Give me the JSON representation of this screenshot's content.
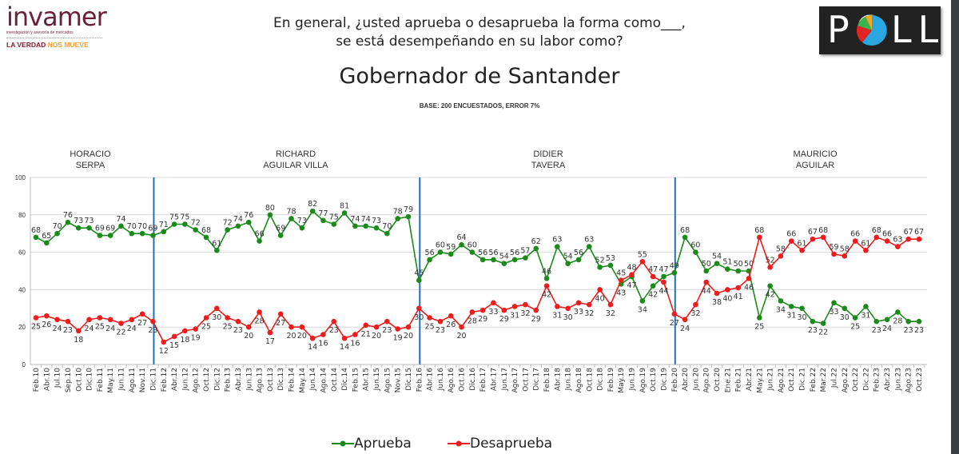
{
  "header": {
    "question": [
      "En general, ¿usted aprueba o desaprueba la forma como___,",
      "se está desempeñando en su labor como?"
    ],
    "title": "Gobernador de Santander",
    "base": "BASE: 200 ENCUESTADOS, ERROR 7%",
    "logo_left": {
      "brand": "invamer",
      "tagline": "investigación y asesoría de mercados",
      "slogan_a": "LA VERDAD",
      "slogan_b": "NOS MUEVE"
    },
    "logo_right": "POLL"
  },
  "candidates": [
    {
      "name": "HORACIO",
      "surname": "SERPA"
    },
    {
      "name": "RICHARD",
      "surname": "AGUILAR VILLA"
    },
    {
      "name": "DIDIER",
      "surname": "TAVERA"
    },
    {
      "name": "MAURICIO",
      "surname": "AGUILAR"
    }
  ],
  "chart_data": {
    "type": "line",
    "title": "Gobernador de Santander",
    "ylim": [
      0,
      100
    ],
    "yticks": [
      0,
      20,
      40,
      60,
      80,
      100
    ],
    "grid": true,
    "legend": "bottom",
    "dividers_at": [
      "Dic.11",
      "Feb.16",
      "Feb.20"
    ],
    "categories": [
      "Feb.10",
      "Abr.10",
      "Jul.10",
      "Sep.10",
      "Oct.10",
      "Dic.10",
      "Feb.11",
      "May.11",
      "Jun.11",
      "Ago.11",
      "Nov.11",
      "Dic.11",
      "Feb.12",
      "Abr.12",
      "Jun.12",
      "Ago.12",
      "Oct.12",
      "Dic.12",
      "Feb.13",
      "Abr.13",
      "Jun.13",
      "Ago.13",
      "Oct.13",
      "Dic.13",
      "Feb.14",
      "May.14",
      "Jun.14",
      "Ago.14",
      "Oct.14",
      "Dic.14",
      "Feb.15",
      "Abr.15",
      "Jun.15",
      "Ago.15",
      "Nov.15",
      "Dic.15",
      "Feb.16",
      "Abr.16",
      "Jun.16",
      "Ago.16",
      "Oct.16",
      "Dic.16",
      "Feb.17",
      "Abr.17",
      "Jun.17",
      "Ago.17",
      "Oct.17",
      "Dic.17",
      "Feb.18",
      "Abr.18",
      "Jun.18",
      "Ago.18",
      "Oct.18",
      "Dic.18",
      "Feb.19",
      "May.19",
      "Jun.19",
      "Ago.19",
      "Oct.19",
      "Dic.19",
      "Feb.20",
      "Abr.20",
      "Jun.20",
      "Ago.20",
      "Oct.20",
      "Ene.21",
      "Feb.21",
      "Abr.21",
      "May.21",
      "Jun.21",
      "Ago.21",
      "Oct.21",
      "Dic.21",
      "Feb.22",
      "Mar.22",
      "Jul.22",
      "Ago.22",
      "Oct.22",
      "Dic.22",
      "Feb.23",
      "Abr.23",
      "Jun.23",
      "Ago.23",
      "Oct.23"
    ],
    "series": [
      {
        "name": "Aprueba",
        "color": "#1a8a1a",
        "values": [
          68,
          65,
          70,
          76,
          73,
          73,
          69,
          69,
          74,
          70,
          70,
          69,
          71,
          75,
          75,
          72,
          68,
          61,
          72,
          74,
          76,
          66,
          80,
          69,
          78,
          73,
          82,
          77,
          75,
          81,
          74,
          74,
          73,
          70,
          78,
          79,
          45,
          56,
          60,
          59,
          64,
          60,
          56,
          56,
          54,
          56,
          57,
          62,
          46,
          63,
          54,
          56,
          63,
          52,
          53,
          43,
          47,
          34,
          42,
          47,
          49,
          68,
          60,
          50,
          54,
          51,
          50,
          50,
          25,
          42,
          34,
          31,
          30,
          23,
          22,
          33,
          30,
          25,
          31,
          23,
          24,
          28,
          23,
          23
        ]
      },
      {
        "name": "Desaprueba",
        "color": "#ee1c1c",
        "values": [
          25,
          26,
          24,
          23,
          18,
          24,
          25,
          24,
          22,
          24,
          27,
          23,
          12,
          15,
          18,
          19,
          25,
          30,
          25,
          23,
          20,
          28,
          17,
          27,
          20,
          20,
          14,
          16,
          23,
          14,
          16,
          21,
          20,
          23,
          19,
          20,
          30,
          25,
          23,
          26,
          20,
          28,
          29,
          33,
          29,
          31,
          32,
          29,
          42,
          31,
          30,
          33,
          32,
          40,
          32,
          45,
          48,
          55,
          47,
          44,
          27,
          24,
          32,
          44,
          38,
          40,
          41,
          46,
          68,
          52,
          58,
          66,
          61,
          67,
          68,
          59,
          58,
          66,
          61,
          68,
          66,
          63,
          67,
          67
        ]
      }
    ]
  }
}
